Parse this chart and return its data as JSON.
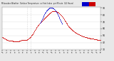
{
  "background_color": "#e8e8e8",
  "plot_bg_color": "#ffffff",
  "temp_color": "#cc0000",
  "heat_color": "#0000cc",
  "ylim": [
    29,
    91
  ],
  "yticks": [
    30,
    40,
    50,
    60,
    70,
    80,
    90
  ],
  "xlim": [
    0,
    1440
  ],
  "vline_positions": [
    360,
    420
  ],
  "vline_color": "#bbbbbb",
  "vline_style": ":",
  "temp_data": [
    [
      0,
      48
    ],
    [
      5,
      48
    ],
    [
      10,
      47
    ],
    [
      15,
      47
    ],
    [
      20,
      47
    ],
    [
      25,
      46
    ],
    [
      30,
      46
    ],
    [
      35,
      46
    ],
    [
      40,
      46
    ],
    [
      45,
      45
    ],
    [
      50,
      45
    ],
    [
      55,
      45
    ],
    [
      60,
      45
    ],
    [
      65,
      44
    ],
    [
      70,
      44
    ],
    [
      75,
      44
    ],
    [
      80,
      44
    ],
    [
      85,
      44
    ],
    [
      90,
      43
    ],
    [
      95,
      43
    ],
    [
      100,
      43
    ],
    [
      105,
      43
    ],
    [
      110,
      43
    ],
    [
      115,
      43
    ],
    [
      120,
      43
    ],
    [
      125,
      43
    ],
    [
      130,
      43
    ],
    [
      135,
      43
    ],
    [
      140,
      43
    ],
    [
      145,
      43
    ],
    [
      150,
      43
    ],
    [
      155,
      42
    ],
    [
      160,
      42
    ],
    [
      165,
      42
    ],
    [
      170,
      42
    ],
    [
      175,
      42
    ],
    [
      180,
      42
    ],
    [
      185,
      42
    ],
    [
      190,
      42
    ],
    [
      195,
      42
    ],
    [
      200,
      42
    ],
    [
      205,
      42
    ],
    [
      210,
      42
    ],
    [
      215,
      42
    ],
    [
      220,
      42
    ],
    [
      225,
      42
    ],
    [
      230,
      42
    ],
    [
      235,
      42
    ],
    [
      240,
      42
    ],
    [
      245,
      42
    ],
    [
      250,
      43
    ],
    [
      255,
      43
    ],
    [
      260,
      43
    ],
    [
      265,
      43
    ],
    [
      270,
      43
    ],
    [
      275,
      43
    ],
    [
      280,
      44
    ],
    [
      285,
      44
    ],
    [
      290,
      44
    ],
    [
      295,
      44
    ],
    [
      300,
      44
    ],
    [
      305,
      44
    ],
    [
      310,
      44
    ],
    [
      315,
      44
    ],
    [
      320,
      44
    ],
    [
      325,
      44
    ],
    [
      330,
      44
    ],
    [
      335,
      44
    ],
    [
      340,
      44
    ],
    [
      345,
      44
    ],
    [
      350,
      44
    ],
    [
      355,
      44
    ],
    [
      360,
      44
    ],
    [
      365,
      45
    ],
    [
      370,
      45
    ],
    [
      375,
      45
    ],
    [
      380,
      46
    ],
    [
      385,
      46
    ],
    [
      390,
      46
    ],
    [
      395,
      47
    ],
    [
      400,
      47
    ],
    [
      405,
      47
    ],
    [
      410,
      48
    ],
    [
      415,
      48
    ],
    [
      420,
      49
    ],
    [
      425,
      50
    ],
    [
      430,
      51
    ],
    [
      435,
      51
    ],
    [
      440,
      52
    ],
    [
      445,
      52
    ],
    [
      450,
      53
    ],
    [
      455,
      54
    ],
    [
      460,
      55
    ],
    [
      465,
      56
    ],
    [
      470,
      57
    ],
    [
      475,
      58
    ],
    [
      480,
      58
    ],
    [
      485,
      59
    ],
    [
      490,
      60
    ],
    [
      495,
      61
    ],
    [
      500,
      62
    ],
    [
      505,
      62
    ],
    [
      510,
      63
    ],
    [
      515,
      63
    ],
    [
      520,
      64
    ],
    [
      525,
      65
    ],
    [
      530,
      65
    ],
    [
      535,
      66
    ],
    [
      540,
      67
    ],
    [
      545,
      67
    ],
    [
      550,
      68
    ],
    [
      555,
      68
    ],
    [
      560,
      69
    ],
    [
      565,
      69
    ],
    [
      570,
      70
    ],
    [
      575,
      70
    ],
    [
      580,
      71
    ],
    [
      585,
      71
    ],
    [
      590,
      72
    ],
    [
      595,
      72
    ],
    [
      600,
      73
    ],
    [
      605,
      73
    ],
    [
      610,
      74
    ],
    [
      615,
      74
    ],
    [
      620,
      75
    ],
    [
      625,
      75
    ],
    [
      630,
      76
    ],
    [
      635,
      76
    ],
    [
      640,
      77
    ],
    [
      645,
      77
    ],
    [
      650,
      78
    ],
    [
      655,
      78
    ],
    [
      660,
      79
    ],
    [
      665,
      79
    ],
    [
      670,
      80
    ],
    [
      675,
      80
    ],
    [
      680,
      81
    ],
    [
      685,
      81
    ],
    [
      690,
      82
    ],
    [
      695,
      82
    ],
    [
      700,
      83
    ],
    [
      705,
      83
    ],
    [
      710,
      83
    ],
    [
      715,
      84
    ],
    [
      720,
      84
    ],
    [
      725,
      84
    ],
    [
      730,
      85
    ],
    [
      735,
      85
    ],
    [
      740,
      85
    ],
    [
      745,
      85
    ],
    [
      750,
      85
    ],
    [
      755,
      85
    ],
    [
      760,
      85
    ],
    [
      765,
      85
    ],
    [
      770,
      85
    ],
    [
      775,
      85
    ],
    [
      780,
      85
    ],
    [
      785,
      85
    ],
    [
      790,
      85
    ],
    [
      795,
      85
    ],
    [
      800,
      84
    ],
    [
      805,
      84
    ],
    [
      810,
      84
    ],
    [
      815,
      83
    ],
    [
      820,
      83
    ],
    [
      825,
      83
    ],
    [
      830,
      82
    ],
    [
      835,
      82
    ],
    [
      840,
      82
    ],
    [
      845,
      81
    ],
    [
      850,
      81
    ],
    [
      855,
      80
    ],
    [
      860,
      80
    ],
    [
      865,
      79
    ],
    [
      870,
      79
    ],
    [
      875,
      78
    ],
    [
      880,
      78
    ],
    [
      885,
      77
    ],
    [
      890,
      76
    ],
    [
      895,
      75
    ],
    [
      900,
      75
    ],
    [
      905,
      74
    ],
    [
      910,
      73
    ],
    [
      915,
      72
    ],
    [
      920,
      71
    ],
    [
      925,
      71
    ],
    [
      930,
      70
    ],
    [
      935,
      69
    ],
    [
      940,
      68
    ],
    [
      945,
      68
    ],
    [
      950,
      67
    ],
    [
      955,
      66
    ],
    [
      960,
      65
    ],
    [
      965,
      65
    ],
    [
      970,
      64
    ],
    [
      975,
      63
    ],
    [
      980,
      63
    ],
    [
      985,
      62
    ],
    [
      990,
      62
    ],
    [
      995,
      61
    ],
    [
      1000,
      61
    ],
    [
      1005,
      60
    ],
    [
      1010,
      60
    ],
    [
      1015,
      59
    ],
    [
      1020,
      59
    ],
    [
      1025,
      58
    ],
    [
      1030,
      58
    ],
    [
      1035,
      57
    ],
    [
      1040,
      57
    ],
    [
      1045,
      57
    ],
    [
      1050,
      56
    ],
    [
      1055,
      56
    ],
    [
      1060,
      56
    ],
    [
      1065,
      55
    ],
    [
      1070,
      55
    ],
    [
      1075,
      55
    ],
    [
      1080,
      54
    ],
    [
      1085,
      54
    ],
    [
      1090,
      54
    ],
    [
      1095,
      53
    ],
    [
      1100,
      53
    ],
    [
      1105,
      53
    ],
    [
      1110,
      53
    ],
    [
      1115,
      52
    ],
    [
      1120,
      52
    ],
    [
      1125,
      52
    ],
    [
      1130,
      52
    ],
    [
      1135,
      51
    ],
    [
      1140,
      51
    ],
    [
      1145,
      51
    ],
    [
      1150,
      51
    ],
    [
      1155,
      50
    ],
    [
      1160,
      50
    ],
    [
      1165,
      50
    ],
    [
      1170,
      50
    ],
    [
      1175,
      50
    ],
    [
      1180,
      49
    ],
    [
      1185,
      49
    ],
    [
      1190,
      49
    ],
    [
      1195,
      49
    ],
    [
      1200,
      49
    ],
    [
      1205,
      49
    ],
    [
      1210,
      48
    ],
    [
      1215,
      48
    ],
    [
      1220,
      48
    ],
    [
      1225,
      48
    ],
    [
      1230,
      48
    ],
    [
      1235,
      48
    ],
    [
      1240,
      48
    ],
    [
      1245,
      47
    ],
    [
      1250,
      47
    ],
    [
      1255,
      47
    ],
    [
      1260,
      47
    ],
    [
      1265,
      47
    ],
    [
      1270,
      47
    ],
    [
      1275,
      47
    ],
    [
      1280,
      47
    ],
    [
      1285,
      46
    ],
    [
      1290,
      46
    ],
    [
      1295,
      46
    ],
    [
      1300,
      46
    ],
    [
      1305,
      46
    ],
    [
      1310,
      46
    ],
    [
      1315,
      46
    ],
    [
      1320,
      46
    ],
    [
      1325,
      46
    ],
    [
      1330,
      46
    ],
    [
      1335,
      46
    ],
    [
      1340,
      46
    ],
    [
      1345,
      45
    ],
    [
      1350,
      45
    ],
    [
      1355,
      45
    ],
    [
      1360,
      45
    ],
    [
      1365,
      45
    ],
    [
      1370,
      45
    ],
    [
      1375,
      45
    ],
    [
      1380,
      45
    ],
    [
      1385,
      45
    ],
    [
      1390,
      44
    ],
    [
      1395,
      44
    ],
    [
      1400,
      44
    ],
    [
      1405,
      44
    ],
    [
      1410,
      44
    ],
    [
      1415,
      44
    ],
    [
      1420,
      44
    ],
    [
      1425,
      44
    ],
    [
      1430,
      44
    ],
    [
      1435,
      44
    ],
    [
      1440,
      44
    ]
  ],
  "heat_data": [
    [
      555,
      68
    ],
    [
      560,
      69
    ],
    [
      565,
      70
    ],
    [
      570,
      71
    ],
    [
      575,
      72
    ],
    [
      580,
      73
    ],
    [
      585,
      74
    ],
    [
      590,
      75
    ],
    [
      595,
      76
    ],
    [
      600,
      77
    ],
    [
      605,
      78
    ],
    [
      610,
      79
    ],
    [
      615,
      80
    ],
    [
      620,
      81
    ],
    [
      625,
      82
    ],
    [
      630,
      83
    ],
    [
      635,
      83
    ],
    [
      640,
      84
    ],
    [
      645,
      85
    ],
    [
      650,
      86
    ],
    [
      655,
      86
    ],
    [
      660,
      87
    ],
    [
      665,
      87
    ],
    [
      670,
      88
    ],
    [
      675,
      88
    ],
    [
      680,
      89
    ],
    [
      685,
      89
    ],
    [
      690,
      90
    ],
    [
      695,
      90
    ],
    [
      700,
      90
    ],
    [
      705,
      90
    ],
    [
      710,
      90
    ],
    [
      715,
      90
    ],
    [
      720,
      90
    ],
    [
      725,
      90
    ],
    [
      730,
      90
    ],
    [
      735,
      90
    ],
    [
      740,
      90
    ],
    [
      745,
      89
    ],
    [
      750,
      89
    ],
    [
      755,
      89
    ],
    [
      760,
      88
    ],
    [
      765,
      88
    ],
    [
      770,
      87
    ],
    [
      775,
      87
    ],
    [
      780,
      86
    ],
    [
      785,
      85
    ],
    [
      790,
      84
    ],
    [
      795,
      84
    ],
    [
      800,
      83
    ],
    [
      805,
      82
    ],
    [
      810,
      81
    ],
    [
      815,
      80
    ],
    [
      820,
      79
    ],
    [
      825,
      78
    ],
    [
      830,
      77
    ],
    [
      835,
      76
    ],
    [
      840,
      75
    ],
    [
      845,
      74
    ],
    [
      850,
      73
    ],
    [
      855,
      72
    ],
    [
      860,
      71
    ],
    [
      865,
      70
    ],
    [
      870,
      69
    ],
    [
      875,
      68
    ],
    [
      880,
      67
    ]
  ],
  "xtick_minutes": [
    0,
    60,
    120,
    180,
    240,
    300,
    360,
    420,
    480,
    540,
    600,
    660,
    720,
    780,
    840,
    900,
    960,
    1020,
    1080,
    1140,
    1200,
    1260,
    1320,
    1380,
    1440
  ],
  "xtick_labels": [
    "12\na",
    "1\na",
    "2\na",
    "3\na",
    "4\na",
    "5\na",
    "6\na",
    "7\na",
    "8\na",
    "9\na",
    "10\na",
    "11\na",
    "12\np",
    "1\np",
    "2\np",
    "3\np",
    "4\np",
    "5\np",
    "6\np",
    "7\np",
    "8\np",
    "9\np",
    "10\np",
    "11\np",
    "12\na"
  ]
}
